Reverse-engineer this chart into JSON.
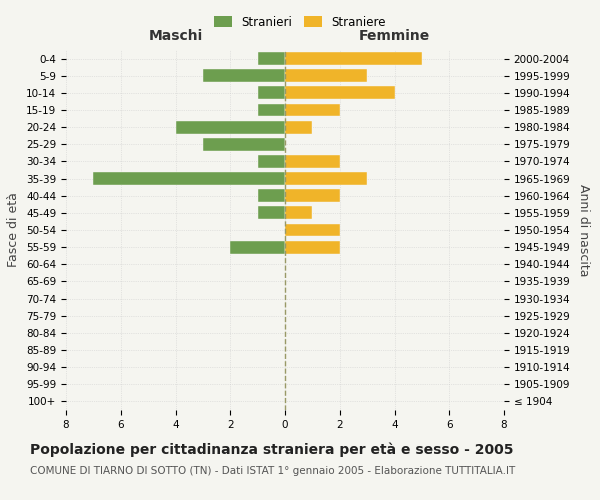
{
  "age_groups": [
    "100+",
    "95-99",
    "90-94",
    "85-89",
    "80-84",
    "75-79",
    "70-74",
    "65-69",
    "60-64",
    "55-59",
    "50-54",
    "45-49",
    "40-44",
    "35-39",
    "30-34",
    "25-29",
    "20-24",
    "15-19",
    "10-14",
    "5-9",
    "0-4"
  ],
  "birth_years": [
    "≤ 1904",
    "1905-1909",
    "1910-1914",
    "1915-1919",
    "1920-1924",
    "1925-1929",
    "1930-1934",
    "1935-1939",
    "1940-1944",
    "1945-1949",
    "1950-1954",
    "1955-1959",
    "1960-1964",
    "1965-1969",
    "1970-1974",
    "1975-1979",
    "1980-1984",
    "1985-1989",
    "1990-1994",
    "1995-1999",
    "2000-2004"
  ],
  "maschi": [
    0,
    0,
    0,
    0,
    0,
    0,
    0,
    0,
    0,
    2,
    0,
    1,
    1,
    7,
    1,
    3,
    4,
    1,
    1,
    3,
    1
  ],
  "femmine": [
    0,
    0,
    0,
    0,
    0,
    0,
    0,
    0,
    0,
    2,
    2,
    1,
    2,
    3,
    2,
    0,
    1,
    2,
    4,
    3,
    5
  ],
  "color_maschi": "#6d9e4f",
  "color_femmine": "#f0b429",
  "xlim": 8,
  "title": "Popolazione per cittadinanza straniera per età e sesso - 2005",
  "subtitle": "COMUNE DI TIARNO DI SOTTO (TN) - Dati ISTAT 1° gennaio 2005 - Elaborazione TUTTITALIA.IT",
  "ylabel_left": "Fasce di età",
  "ylabel_right": "Anni di nascita",
  "label_maschi": "Stranieri",
  "label_femmine": "Straniere",
  "xlabel_maschi": "Maschi",
  "xlabel_femmine": "Femmine",
  "background_color": "#f5f5f0",
  "grid_color": "#cccccc",
  "title_fontsize": 10,
  "subtitle_fontsize": 7.5,
  "tick_fontsize": 7.5,
  "label_fontsize": 9
}
